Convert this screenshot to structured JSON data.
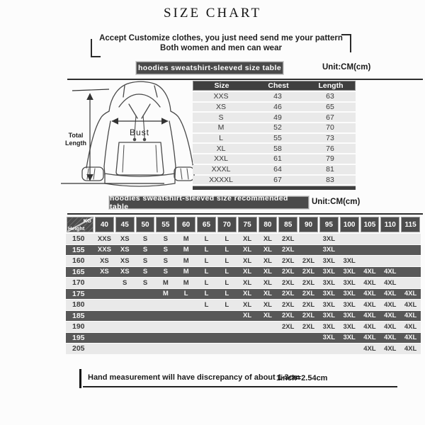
{
  "title": "SIZE CHART",
  "banner": {
    "line1": "Accept Customize clothes, you just need send me your pattern",
    "line2": "Both women and men can wear"
  },
  "section1": {
    "badge": "hoodies sweatshirt-sleeved size table",
    "unit": "Unit:CM(cm)"
  },
  "section2": {
    "badge": "hoodies sweatshirt-sleeved size recommended table",
    "unit": "Unit:CM(cm)"
  },
  "diagram": {
    "bust_label": "Bust",
    "total_length_label": "Total Length"
  },
  "size_table": {
    "headers": [
      "Size",
      "Chest",
      "Length"
    ],
    "rows": [
      [
        "XXS",
        "43",
        "63"
      ],
      [
        "XS",
        "46",
        "65"
      ],
      [
        "S",
        "49",
        "67"
      ],
      [
        "M",
        "52",
        "70"
      ],
      [
        "L",
        "55",
        "73"
      ],
      [
        "XL",
        "58",
        "76"
      ],
      [
        "XXL",
        "61",
        "79"
      ],
      [
        "XXXL",
        "64",
        "81"
      ],
      [
        "XXXXL",
        "67",
        "83"
      ]
    ]
  },
  "matrix": {
    "corner": {
      "top": "KG",
      "bottom": "Height"
    },
    "weights": [
      "40",
      "45",
      "50",
      "55",
      "60",
      "65",
      "70",
      "75",
      "80",
      "85",
      "90",
      "95",
      "100",
      "105",
      "110",
      "115"
    ],
    "rows": [
      {
        "height": "150",
        "dark": false,
        "cells": [
          "XXS",
          "XS",
          "S",
          "S",
          "M",
          "L",
          "L",
          "XL",
          "XL",
          "2XL",
          "",
          "3XL",
          "",
          "",
          "",
          ""
        ]
      },
      {
        "height": "155",
        "dark": true,
        "cells": [
          "XXS",
          "XS",
          "S",
          "S",
          "M",
          "L",
          "L",
          "XL",
          "XL",
          "2XL",
          "",
          "3XL",
          "",
          "",
          "",
          ""
        ]
      },
      {
        "height": "160",
        "dark": false,
        "cells": [
          "XS",
          "XS",
          "S",
          "S",
          "M",
          "L",
          "L",
          "XL",
          "XL",
          "2XL",
          "2XL",
          "3XL",
          "3XL",
          "",
          "",
          ""
        ]
      },
      {
        "height": "165",
        "dark": true,
        "cells": [
          "XS",
          "XS",
          "S",
          "S",
          "M",
          "L",
          "L",
          "XL",
          "XL",
          "2XL",
          "2XL",
          "3XL",
          "3XL",
          "4XL",
          "4XL",
          ""
        ]
      },
      {
        "height": "170",
        "dark": false,
        "cells": [
          "",
          "S",
          "S",
          "M",
          "M",
          "L",
          "L",
          "XL",
          "XL",
          "2XL",
          "2XL",
          "3XL",
          "3XL",
          "4XL",
          "4XL",
          ""
        ]
      },
      {
        "height": "175",
        "dark": true,
        "cells": [
          "",
          "",
          "",
          "M",
          "L",
          "L",
          "L",
          "XL",
          "XL",
          "2XL",
          "2XL",
          "3XL",
          "3XL",
          "4XL",
          "4XL",
          "4XL"
        ]
      },
      {
        "height": "180",
        "dark": false,
        "cells": [
          "",
          "",
          "",
          "",
          "",
          "L",
          "L",
          "XL",
          "XL",
          "2XL",
          "2XL",
          "3XL",
          "3XL",
          "4XL",
          "4XL",
          "4XL"
        ]
      },
      {
        "height": "185",
        "dark": true,
        "cells": [
          "",
          "",
          "",
          "",
          "",
          "",
          "",
          "XL",
          "XL",
          "2XL",
          "2XL",
          "3XL",
          "3XL",
          "4XL",
          "4XL",
          "4XL"
        ]
      },
      {
        "height": "190",
        "dark": false,
        "cells": [
          "",
          "",
          "",
          "",
          "",
          "",
          "",
          "",
          "",
          "2XL",
          "2XL",
          "3XL",
          "3XL",
          "4XL",
          "4XL",
          "4XL"
        ]
      },
      {
        "height": "195",
        "dark": true,
        "cells": [
          "",
          "",
          "",
          "",
          "",
          "",
          "",
          "",
          "",
          "",
          "",
          "3XL",
          "3XL",
          "4XL",
          "4XL",
          "4XL"
        ]
      },
      {
        "height": "205",
        "dark": false,
        "cells": [
          "",
          "",
          "",
          "",
          "",
          "",
          "",
          "",
          "",
          "",
          "",
          "",
          "",
          "4XL",
          "4XL",
          "4XL"
        ]
      }
    ]
  },
  "footer": {
    "note": "Hand measurement will have discrepancy of about  1-3cm",
    "conversion": "1inch=2.54cm"
  },
  "colors": {
    "badge_bg": "#4a4a4a",
    "table_header_bg": "#3f3f3f",
    "row_light": "#e9e9e9",
    "row_dark": "#585858",
    "text": "#1e1e1e"
  }
}
